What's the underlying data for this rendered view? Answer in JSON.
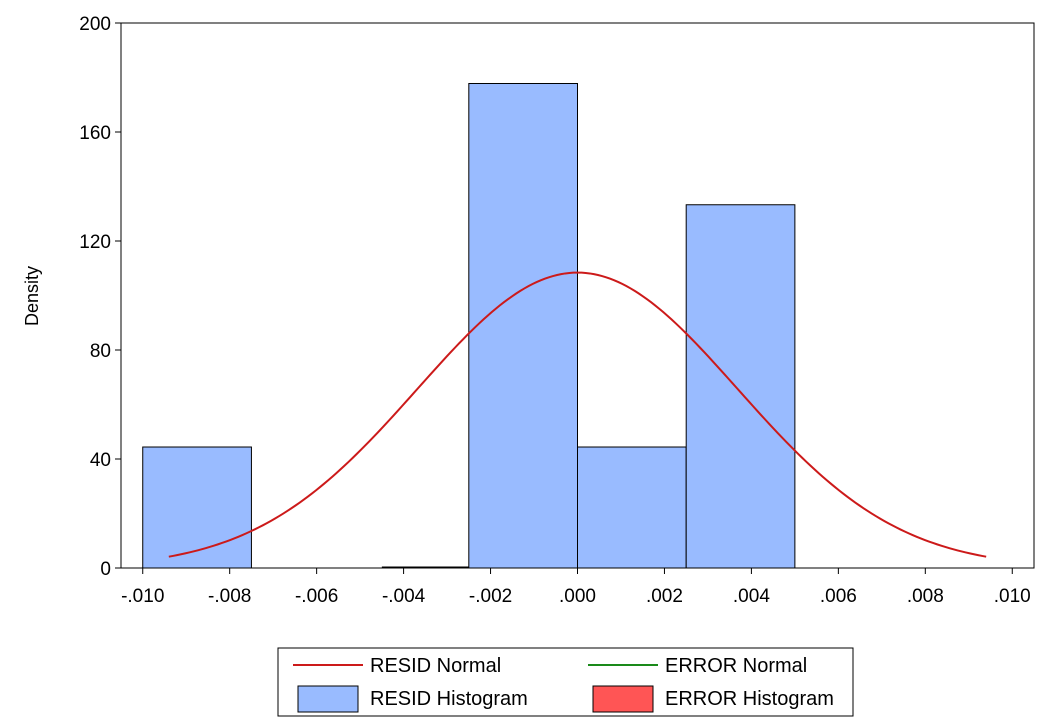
{
  "chart_data": {
    "type": "bar",
    "title": "",
    "xlabel": "",
    "ylabel": "Density",
    "xlim": [
      -0.0105,
      0.0105
    ],
    "ylim": [
      0,
      200
    ],
    "x_ticks": [
      -0.01,
      -0.008,
      -0.006,
      -0.004,
      -0.002,
      0.0,
      0.002,
      0.004,
      0.006,
      0.008,
      0.01
    ],
    "x_tick_labels": [
      "-.010",
      "-.008",
      "-.006",
      "-.004",
      "-.002",
      ".000",
      ".002",
      ".004",
      ".006",
      ".008",
      ".010"
    ],
    "y_ticks": [
      0,
      40,
      80,
      120,
      160,
      200
    ],
    "y_tick_labels": [
      "0",
      "40",
      "80",
      "120",
      "160",
      "200"
    ],
    "grid": false,
    "legend_position": "bottom-center",
    "histogram": {
      "name": "RESID Histogram",
      "color": "#99bbff",
      "bins": [
        {
          "x0": -0.01,
          "x1": -0.0075,
          "density": 44.4
        },
        {
          "x0": -0.0075,
          "x1": -0.005,
          "density": 0
        },
        {
          "x0": -0.005,
          "x1": -0.0025,
          "density": 0
        },
        {
          "x0": -0.0025,
          "x1": 0.0,
          "density": 177.8
        },
        {
          "x0": 0.0,
          "x1": 0.0025,
          "density": 44.4
        },
        {
          "x0": 0.0025,
          "x1": 0.005,
          "density": 133.3
        }
      ]
    },
    "normal_curve": {
      "name": "RESID Normal",
      "color": "#cc1a1a",
      "mean": 0.0,
      "std": 0.00368,
      "x_range": [
        -0.0094,
        0.0094
      ]
    },
    "legend": [
      {
        "label": "RESID Normal",
        "kind": "line",
        "color": "#cc1a1a"
      },
      {
        "label": "ERROR Normal",
        "kind": "line",
        "color": "#1a8a1a"
      },
      {
        "label": "RESID Histogram",
        "kind": "box",
        "color": "#99bbff"
      },
      {
        "label": "ERROR Histogram",
        "kind": "box",
        "color": "#ff5555"
      }
    ]
  }
}
